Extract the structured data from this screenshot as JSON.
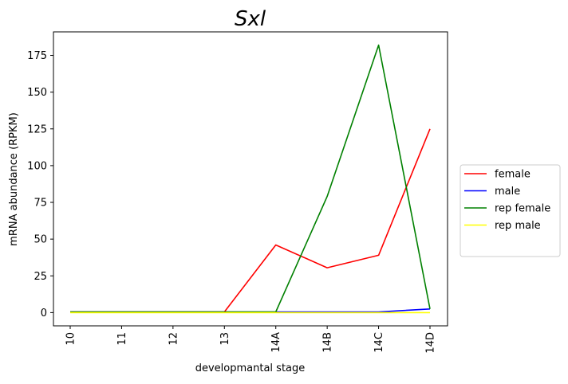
{
  "chart_data": {
    "type": "line",
    "title": "Sxl",
    "xlabel": "developmantal stage",
    "ylabel": "mRNA abundance (RPKM)",
    "categories": [
      "10",
      "11",
      "12",
      "13",
      "14A",
      "14B",
      "14C",
      "14D"
    ],
    "ylim": [
      -9,
      191
    ],
    "yticks": [
      0,
      25,
      50,
      75,
      100,
      125,
      150,
      175
    ],
    "grid": false,
    "legend_position": "center-right-outside",
    "series": [
      {
        "name": "female",
        "color": "#ff0000",
        "values": [
          0.5,
          0.5,
          0.5,
          0.5,
          46,
          30.5,
          39,
          125
        ]
      },
      {
        "name": "male",
        "color": "#0000ff",
        "values": [
          0.5,
          0.5,
          0.5,
          0.5,
          0.5,
          0.5,
          0.5,
          2.5
        ]
      },
      {
        "name": "rep female",
        "color": "#008000",
        "values": [
          0.5,
          0.5,
          0.5,
          0.5,
          0.5,
          79,
          182,
          2.5
        ]
      },
      {
        "name": "rep male",
        "color": "#ffff00",
        "values": [
          0,
          0,
          0,
          0,
          0,
          0,
          0,
          0
        ]
      }
    ]
  }
}
